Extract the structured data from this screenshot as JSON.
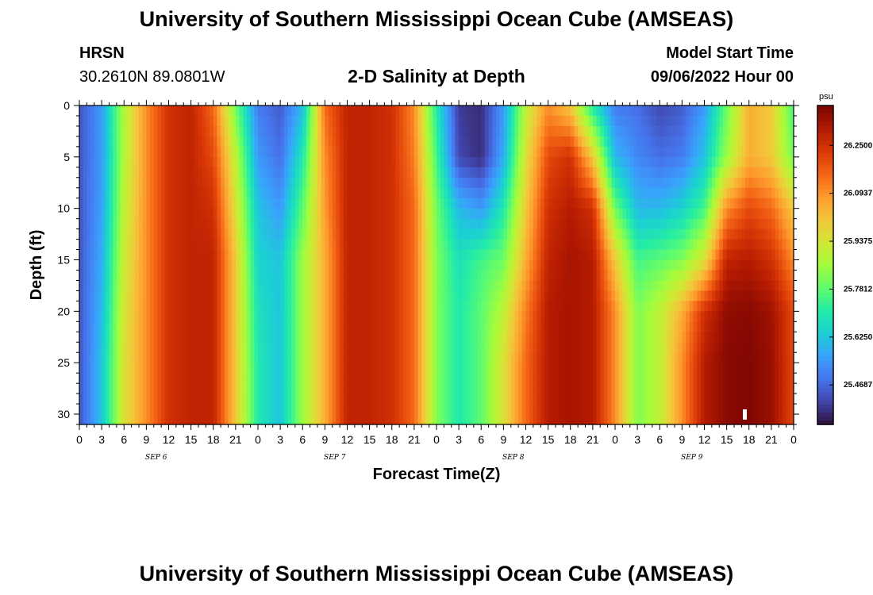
{
  "header": {
    "title_top": "University of Southern Mississippi Ocean Cube (AMSEAS)",
    "station": "HRSN",
    "coords": "30.2610N  89.0801W",
    "plot_title": "2-D Salinity at Depth",
    "model_start_label": "Model Start Time",
    "model_start_value": "09/06/2022 Hour 00",
    "title_bottom": "University of Southern Mississippi Ocean Cube (AMSEAS)"
  },
  "colors": {
    "colormap": [
      "#30123b",
      "#4145ab",
      "#4675ed",
      "#39a2fc",
      "#1bcfd4",
      "#24eca6",
      "#61fc6c",
      "#a4fc3b",
      "#d1e834",
      "#f3c63a",
      "#fe9b2d",
      "#f36315",
      "#d93806",
      "#b11901",
      "#7a0403"
    ]
  },
  "chart_data": {
    "type": "heatmap",
    "title": "2-D Salinity at Depth",
    "xlabel": "Forecast Time(Z)",
    "ylabel": "Depth (ft)",
    "x_tick_labels": [
      "0",
      "3",
      "6",
      "9",
      "12",
      "15",
      "18",
      "21",
      "0",
      "3",
      "6",
      "9",
      "12",
      "15",
      "18",
      "21",
      "0",
      "3",
      "6",
      "9",
      "12",
      "15",
      "18",
      "21",
      "0",
      "3",
      "6",
      "9",
      "12",
      "15",
      "18",
      "21",
      "0"
    ],
    "x_range_hours": [
      0,
      96
    ],
    "day_labels": [
      {
        "label": "SEP 6",
        "hour": 10
      },
      {
        "label": "SEP 7",
        "hour": 34
      },
      {
        "label": "SEP 8",
        "hour": 58
      },
      {
        "label": "SEP 9",
        "hour": 82
      }
    ],
    "y_ticks": [
      0,
      5,
      10,
      15,
      20,
      25,
      30
    ],
    "y_tick_labels": [
      "0",
      "5",
      "10",
      "15",
      "20",
      "25",
      "30"
    ],
    "y_range_ft": [
      0,
      31
    ],
    "y_inverted": true,
    "colorbar": {
      "unit": "psu",
      "range": [
        25.34,
        26.38
      ],
      "ticks": [
        26.25,
        26.09375,
        25.9375,
        25.78125,
        25.625,
        25.46875
      ],
      "tick_labels": [
        "26.2500",
        "26.0937",
        "25.9375",
        "25.7812",
        "25.6250",
        "25.4687"
      ]
    },
    "salinity_profiles": {
      "depths_ft": [
        0,
        5,
        10,
        15,
        20,
        25,
        31
      ],
      "times_h": [
        0,
        3,
        6,
        9,
        12,
        15,
        18,
        21,
        24,
        27,
        30,
        33,
        36,
        39,
        42,
        45,
        48,
        51,
        54,
        57,
        60,
        63,
        66,
        69,
        72,
        75,
        78,
        81,
        84,
        87,
        90,
        93,
        96
      ],
      "values": [
        [
          25.44,
          25.44,
          25.44,
          25.44,
          25.44,
          25.44,
          25.44
        ],
        [
          25.55,
          25.55,
          25.56,
          25.58,
          25.6,
          25.62,
          25.62
        ],
        [
          25.88,
          25.88,
          25.9,
          25.92,
          25.94,
          25.95,
          25.95
        ],
        [
          26.1,
          26.1,
          26.1,
          26.1,
          26.1,
          26.1,
          26.1
        ],
        [
          26.25,
          26.25,
          26.25,
          26.25,
          26.25,
          26.25,
          26.25
        ],
        [
          26.28,
          26.28,
          26.28,
          26.28,
          26.28,
          26.28,
          26.28
        ],
        [
          26.15,
          26.2,
          26.25,
          26.28,
          26.28,
          26.28,
          26.28
        ],
        [
          25.8,
          25.9,
          25.95,
          26.0,
          26.0,
          26.0,
          26.0
        ],
        [
          25.5,
          25.55,
          25.62,
          25.65,
          25.68,
          25.7,
          25.7
        ],
        [
          25.45,
          25.48,
          25.55,
          25.62,
          25.62,
          25.62,
          25.62
        ],
        [
          25.6,
          25.7,
          25.78,
          25.85,
          25.85,
          25.85,
          25.85
        ],
        [
          26.15,
          26.1,
          26.08,
          26.05,
          26.05,
          26.05,
          26.05
        ],
        [
          26.28,
          26.28,
          26.28,
          26.28,
          26.28,
          26.28,
          26.28
        ],
        [
          26.28,
          26.28,
          26.28,
          26.28,
          26.28,
          26.28,
          26.28
        ],
        [
          26.25,
          26.25,
          26.25,
          26.25,
          26.25,
          26.25,
          26.25
        ],
        [
          26.1,
          26.12,
          26.15,
          26.15,
          26.15,
          26.15,
          26.15
        ],
        [
          25.7,
          25.75,
          25.8,
          25.82,
          25.82,
          25.82,
          25.82
        ],
        [
          25.4,
          25.42,
          25.6,
          25.68,
          25.7,
          25.7,
          25.7
        ],
        [
          25.38,
          25.38,
          25.55,
          25.75,
          25.78,
          25.78,
          25.78
        ],
        [
          25.55,
          25.58,
          25.7,
          25.8,
          25.9,
          25.95,
          25.95
        ],
        [
          25.9,
          25.95,
          26.0,
          26.05,
          26.12,
          26.15,
          26.15
        ],
        [
          26.1,
          26.2,
          26.25,
          26.28,
          26.3,
          26.3,
          26.3
        ],
        [
          26.0,
          26.25,
          26.3,
          26.32,
          26.32,
          26.32,
          26.32
        ],
        [
          25.7,
          26.0,
          26.25,
          26.3,
          26.3,
          26.3,
          26.3
        ],
        [
          25.5,
          25.6,
          25.8,
          26.0,
          26.1,
          26.1,
          26.1
        ],
        [
          25.48,
          25.52,
          25.6,
          25.75,
          25.82,
          25.82,
          25.82
        ],
        [
          25.42,
          25.48,
          25.6,
          25.78,
          25.9,
          25.9,
          25.9
        ],
        [
          25.45,
          25.5,
          25.65,
          25.82,
          26.05,
          26.1,
          26.1
        ],
        [
          25.55,
          25.62,
          25.75,
          25.95,
          26.25,
          26.3,
          26.3
        ],
        [
          25.8,
          25.85,
          26.1,
          26.28,
          26.35,
          26.36,
          26.36
        ],
        [
          26.05,
          26.05,
          26.2,
          26.3,
          26.36,
          26.37,
          26.37
        ],
        [
          26.0,
          26.0,
          26.15,
          26.25,
          26.33,
          26.34,
          26.34
        ],
        [
          25.75,
          25.8,
          26.0,
          26.1,
          26.2,
          26.2,
          26.2
        ]
      ]
    }
  }
}
